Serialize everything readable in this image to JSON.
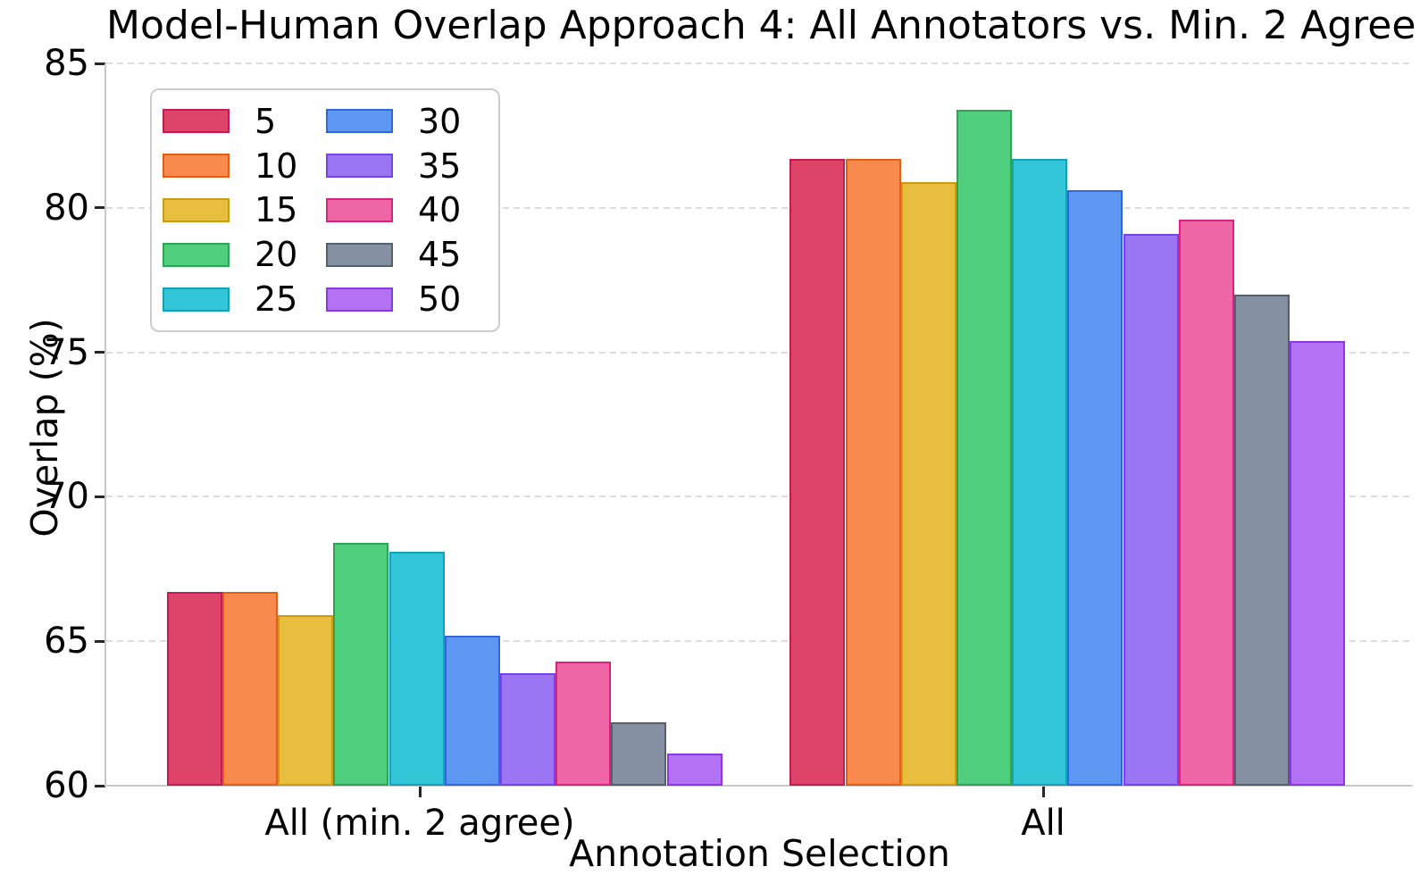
{
  "title": "Model-Human Overlap Approach 4: All Annotators vs. Min. 2 Agree",
  "axes": {
    "x_label": "Annotation Selection",
    "y_label": "Overlap (%)",
    "y_ticks": [
      60,
      65,
      70,
      75,
      80,
      85
    ],
    "y_min": 60,
    "y_max": 85
  },
  "chart_data": {
    "type": "bar",
    "title": "Model-Human Overlap Approach 4: All Annotators vs. Min. 2 Agree",
    "xlabel": "Annotation Selection",
    "ylabel": "Overlap (%)",
    "ylim": [
      60,
      85
    ],
    "grid": true,
    "legend_position": "upper left",
    "legend_columns": 2,
    "categories": [
      "All (min. 2 agree)",
      "All"
    ],
    "series": [
      {
        "name": "5",
        "color": "#de4368",
        "edge": "#c41a52",
        "values": [
          66.7,
          81.7
        ]
      },
      {
        "name": "10",
        "color": "#f78a4c",
        "edge": "#e55d15",
        "values": [
          66.7,
          81.7
        ]
      },
      {
        "name": "15",
        "color": "#e8be3f",
        "edge": "#ce9a12",
        "values": [
          65.9,
          80.9
        ]
      },
      {
        "name": "20",
        "color": "#4fce7e",
        "edge": "#2ba656",
        "values": [
          68.4,
          83.4
        ]
      },
      {
        "name": "25",
        "color": "#33c5d8",
        "edge": "#12a3bc",
        "values": [
          68.1,
          81.7
        ]
      },
      {
        "name": "30",
        "color": "#5e97f2",
        "edge": "#2e66e3",
        "values": [
          65.2,
          80.6
        ]
      },
      {
        "name": "35",
        "color": "#9a75f4",
        "edge": "#7742ec",
        "values": [
          63.9,
          79.1
        ]
      },
      {
        "name": "40",
        "color": "#ee66a5",
        "edge": "#dc2080",
        "values": [
          64.3,
          79.6
        ]
      },
      {
        "name": "45",
        "color": "#8591a2",
        "edge": "#555f6e",
        "values": [
          62.2,
          77.0
        ]
      },
      {
        "name": "50",
        "color": "#b272f3",
        "edge": "#8f35e8",
        "values": [
          61.1,
          75.4
        ]
      }
    ]
  }
}
